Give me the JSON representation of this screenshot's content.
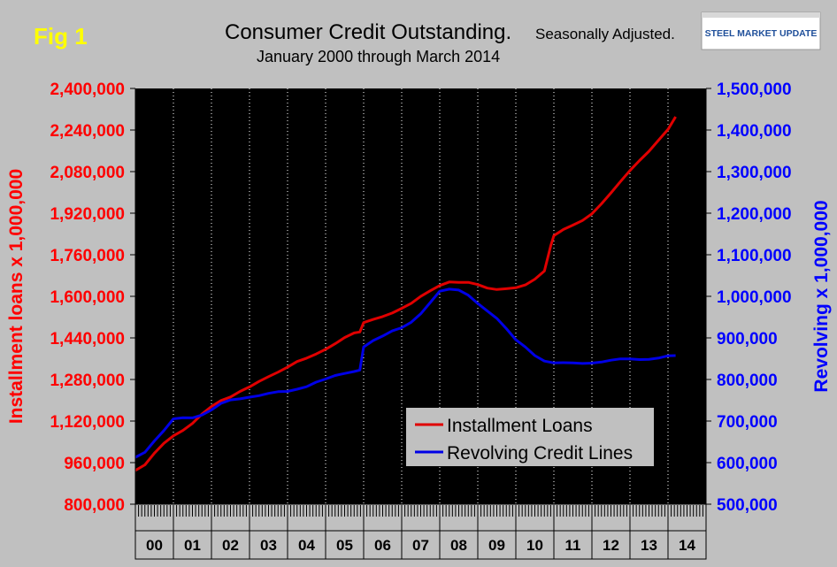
{
  "fig_label": "Fig 1",
  "title": "Consumer Credit Outstanding.",
  "title_suffix": "Seasonally Adjusted.",
  "subtitle": "January 2000 through March 2014",
  "logo_text": "STEEL MARKET UPDATE",
  "chart_data": {
    "type": "line",
    "xlabel": "",
    "ylabel_left": "Installment loans x 1,000,000",
    "ylabel_right": "Revolving x 1,000,000",
    "ylim_left": [
      800000,
      2400000
    ],
    "ylim_right": [
      500000,
      1500000
    ],
    "yticks_left": [
      "800,000",
      "960,000",
      "1,120,000",
      "1,280,000",
      "1,440,000",
      "1,600,000",
      "1,760,000",
      "1,920,000",
      "2,080,000",
      "2,240,000",
      "2,400,000"
    ],
    "yticks_right": [
      "500,000",
      "600,000",
      "700,000",
      "800,000",
      "900,000",
      "1,000,000",
      "1,100,000",
      "1,200,000",
      "1,300,000",
      "1,400,000",
      "1,500,000"
    ],
    "x_categories": [
      "00",
      "01",
      "02",
      "03",
      "04",
      "05",
      "06",
      "07",
      "08",
      "09",
      "10",
      "11",
      "12",
      "13",
      "14"
    ],
    "xlim": [
      2000.0,
      2015.0
    ],
    "grid": "vertical-dotted",
    "legend_position": "bottom-right",
    "colors": {
      "installment": "#e00000",
      "revolving": "#0000e6",
      "plot_bg": "#000000",
      "left_axis": "#ff0000",
      "right_axis": "#0000ff",
      "fig_label": "#ffff00"
    },
    "series": [
      {
        "name": "Installment Loans",
        "axis": "left",
        "x": [
          2000.0,
          2000.25,
          2000.5,
          2000.75,
          2001.0,
          2001.25,
          2001.5,
          2001.75,
          2002.0,
          2002.25,
          2002.5,
          2002.75,
          2003.0,
          2003.25,
          2003.5,
          2003.75,
          2004.0,
          2004.25,
          2004.5,
          2004.75,
          2005.0,
          2005.25,
          2005.5,
          2005.75,
          2005.9,
          2006.0,
          2006.25,
          2006.5,
          2006.75,
          2007.0,
          2007.25,
          2007.5,
          2007.75,
          2008.0,
          2008.25,
          2008.5,
          2008.75,
          2009.0,
          2009.25,
          2009.5,
          2009.75,
          2010.0,
          2010.25,
          2010.5,
          2010.75,
          2010.92,
          2011.0,
          2011.25,
          2011.5,
          2011.75,
          2012.0,
          2012.25,
          2012.5,
          2012.75,
          2013.0,
          2013.25,
          2013.5,
          2013.75,
          2014.0,
          2014.2
        ],
        "values": [
          930000,
          955000,
          1000000,
          1035000,
          1060000,
          1080000,
          1110000,
          1150000,
          1180000,
          1200000,
          1210000,
          1230000,
          1250000,
          1275000,
          1295000,
          1310000,
          1325000,
          1345000,
          1360000,
          1380000,
          1400000,
          1420000,
          1440000,
          1455000,
          1460000,
          1500000,
          1515000,
          1525000,
          1535000,
          1550000,
          1570000,
          1600000,
          1625000,
          1645000,
          1655000,
          1650000,
          1650000,
          1645000,
          1635000,
          1630000,
          1630000,
          1630000,
          1640000,
          1665000,
          1700000,
          1800000,
          1835000,
          1855000,
          1870000,
          1890000,
          1920000,
          1960000,
          2000000,
          2040000,
          2080000,
          2120000,
          2160000,
          2205000,
          2245000,
          2290000
        ]
      },
      {
        "name": "Revolving Credit Lines",
        "axis": "right",
        "x": [
          2000.0,
          2000.25,
          2000.5,
          2000.75,
          2001.0,
          2001.25,
          2001.5,
          2001.75,
          2002.0,
          2002.25,
          2002.5,
          2002.75,
          2003.0,
          2003.25,
          2003.5,
          2003.75,
          2004.0,
          2004.25,
          2004.5,
          2004.75,
          2005.0,
          2005.25,
          2005.5,
          2005.75,
          2005.9,
          2006.0,
          2006.25,
          2006.5,
          2006.75,
          2007.0,
          2007.25,
          2007.5,
          2007.75,
          2008.0,
          2008.25,
          2008.5,
          2008.75,
          2009.0,
          2009.25,
          2009.5,
          2009.75,
          2010.0,
          2010.25,
          2010.5,
          2010.75,
          2011.0,
          2011.25,
          2011.5,
          2011.75,
          2012.0,
          2012.25,
          2012.5,
          2012.75,
          2013.0,
          2013.25,
          2013.5,
          2013.75,
          2014.0,
          2014.2
        ],
        "values": [
          615000,
          625000,
          650000,
          675000,
          705000,
          710000,
          710000,
          715000,
          725000,
          740000,
          750000,
          755000,
          760000,
          762000,
          765000,
          768000,
          770000,
          778000,
          785000,
          795000,
          800000,
          807000,
          813000,
          820000,
          825000,
          880000,
          893000,
          902000,
          915000,
          925000,
          940000,
          960000,
          985000,
          1010000,
          1015000,
          1015000,
          1005000,
          985000,
          965000,
          945000,
          920000,
          895000,
          880000,
          860000,
          845000,
          838000,
          838000,
          839000,
          840000,
          842000,
          843000,
          845000,
          847000,
          848000,
          849000,
          851000,
          853000,
          856000,
          855000
        ]
      }
    ]
  }
}
